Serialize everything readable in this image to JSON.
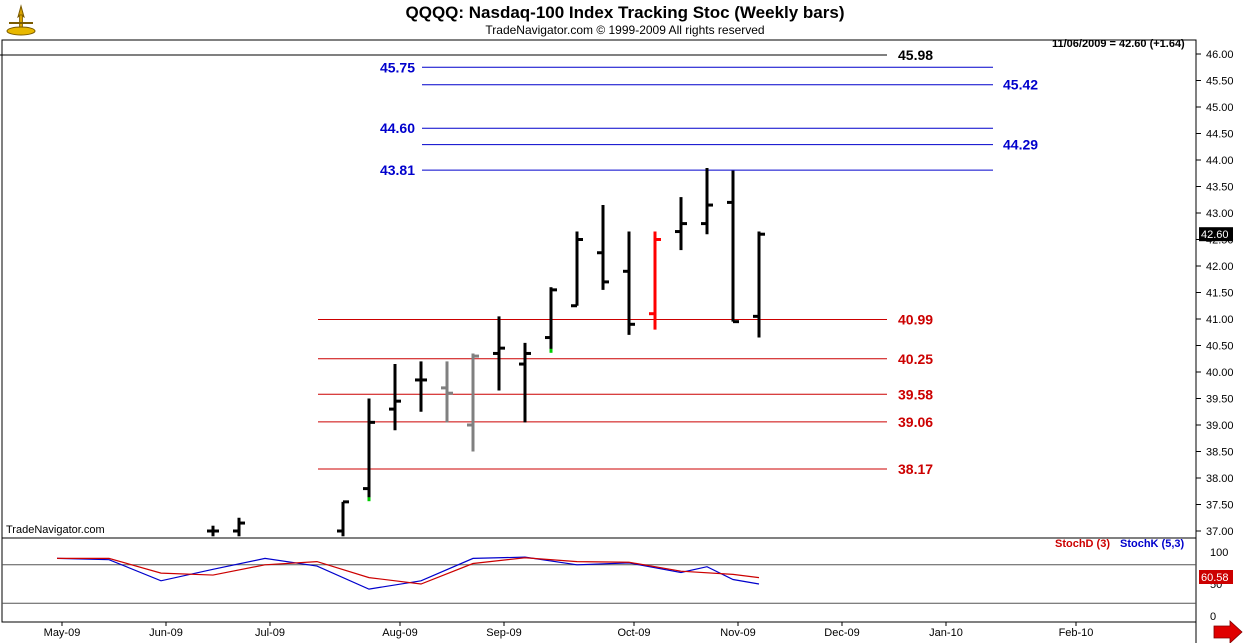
{
  "header": {
    "title": "QQQQ:  Nasdaq-100 Index Tracking Stoc  (Weekly bars)",
    "copyright": "TradeNavigator.com © 1999-2009 All rights reserved",
    "date_info": "11/06/2009 = 42.60 (+1.64)",
    "watermark": "TradeNavigator.com",
    "logo_icon": "trade-navigator-logo-icon"
  },
  "colors": {
    "bar": "#000000",
    "bar_gray": "#808080",
    "bar_red": "#ff0000",
    "fib_blue": "#0000cc",
    "fib_red": "#cc0000",
    "stochK": "#0000cc",
    "stochD": "#cc0000",
    "low_dot": "#00cc00"
  },
  "chart_data": [
    {
      "type": "ohlc",
      "frequency": "weekly",
      "ylim": [
        36.9,
        46.15
      ],
      "y_ticks": [
        "46.00",
        "45.50",
        "45.00",
        "44.50",
        "44.00",
        "43.50",
        "43.00",
        "42.50",
        "42.00",
        "41.50",
        "41.00",
        "40.50",
        "40.00",
        "39.50",
        "39.00",
        "38.50",
        "38.00",
        "37.50",
        "37.00"
      ],
      "x_ticks": [
        "May-09",
        "Jun-09",
        "Jul-09",
        "Aug-09",
        "Sep-09",
        "Oct-09",
        "Nov-09",
        "Dec-09",
        "Jan-10",
        "Feb-10"
      ],
      "x_tick_index": [
        0,
        4,
        8,
        13,
        17,
        22,
        26,
        30,
        34,
        39
      ],
      "last_price_label": "42.60",
      "bars": [
        {
          "i": 6,
          "o": 37.0,
          "h": 37.1,
          "l": 36.9,
          "c": 37.0,
          "color": "black"
        },
        {
          "i": 7,
          "o": 37.0,
          "h": 37.25,
          "l": 36.9,
          "c": 37.15,
          "color": "black"
        },
        {
          "i": 11,
          "o": 37.0,
          "h": 37.55,
          "l": 36.9,
          "c": 37.55,
          "color": "black"
        },
        {
          "i": 12,
          "o": 37.8,
          "h": 39.5,
          "l": 37.6,
          "c": 39.05,
          "color": "black",
          "low_dot": true
        },
        {
          "i": 13,
          "o": 39.3,
          "h": 40.15,
          "l": 38.9,
          "c": 39.45,
          "color": "black"
        },
        {
          "i": 14,
          "o": 39.85,
          "h": 40.2,
          "l": 39.25,
          "c": 39.85,
          "color": "black"
        },
        {
          "i": 15,
          "o": 39.7,
          "h": 40.2,
          "l": 39.05,
          "c": 39.6,
          "color": "gray"
        },
        {
          "i": 16,
          "o": 39.0,
          "h": 40.35,
          "l": 38.5,
          "c": 40.3,
          "color": "gray"
        },
        {
          "i": 17,
          "o": 40.35,
          "h": 41.05,
          "l": 39.65,
          "c": 40.45,
          "color": "black"
        },
        {
          "i": 18,
          "o": 40.15,
          "h": 40.55,
          "l": 39.05,
          "c": 40.35,
          "color": "black"
        },
        {
          "i": 19,
          "o": 40.65,
          "h": 41.6,
          "l": 40.4,
          "c": 41.55,
          "color": "black",
          "low_dot": true
        },
        {
          "i": 20,
          "o": 41.25,
          "h": 42.65,
          "l": 41.25,
          "c": 42.5,
          "color": "black"
        },
        {
          "i": 21,
          "o": 42.25,
          "h": 43.15,
          "l": 41.55,
          "c": 41.7,
          "color": "black"
        },
        {
          "i": 22,
          "o": 41.9,
          "h": 42.65,
          "l": 40.7,
          "c": 40.9,
          "color": "black"
        },
        {
          "i": 23,
          "o": 41.1,
          "h": 42.65,
          "l": 40.8,
          "c": 42.5,
          "color": "red"
        },
        {
          "i": 24,
          "o": 42.65,
          "h": 43.3,
          "l": 42.3,
          "c": 42.8,
          "color": "black"
        },
        {
          "i": 25,
          "o": 42.8,
          "h": 43.85,
          "l": 42.6,
          "c": 43.15,
          "color": "black"
        },
        {
          "i": 26,
          "o": 43.2,
          "h": 43.8,
          "l": 40.95,
          "c": 40.95,
          "color": "black"
        },
        {
          "i": 27,
          "o": 41.05,
          "h": 42.65,
          "l": 40.65,
          "c": 42.6,
          "color": "black"
        }
      ],
      "fib_levels": [
        {
          "value": 45.98,
          "label": "45.98",
          "color": "black",
          "side": "right"
        },
        {
          "value": 45.75,
          "label": "45.75",
          "color": "blue",
          "side": "left"
        },
        {
          "value": 45.42,
          "label": "45.42",
          "color": "blue",
          "side": "right"
        },
        {
          "value": 44.6,
          "label": "44.60",
          "color": "blue",
          "side": "left"
        },
        {
          "value": 44.29,
          "label": "44.29",
          "color": "blue",
          "side": "right"
        },
        {
          "value": 43.81,
          "label": "43.81",
          "color": "blue",
          "side": "left"
        },
        {
          "value": 40.99,
          "label": "40.99",
          "color": "red",
          "side": "right"
        },
        {
          "value": 40.25,
          "label": "40.25",
          "color": "red",
          "side": "right"
        },
        {
          "value": 39.58,
          "label": "39.58",
          "color": "red",
          "side": "right"
        },
        {
          "value": 39.06,
          "label": "39.06",
          "color": "red",
          "side": "right"
        },
        {
          "value": 38.17,
          "label": "38.17",
          "color": "red",
          "side": "right"
        }
      ]
    },
    {
      "type": "line",
      "ylim": [
        0,
        100
      ],
      "y_ticks": [
        "100",
        "50",
        "0"
      ],
      "legend": [
        "StochD (3)",
        "StochK (5,3)"
      ],
      "last_value_label": "60.58",
      "series": [
        {
          "name": "StochK (5,3)",
          "color": "blue",
          "x": [
            0,
            2,
            4,
            6,
            8,
            10,
            12,
            14,
            16,
            18,
            20,
            22,
            24,
            25,
            26,
            27
          ],
          "values": [
            90,
            88,
            55,
            73,
            90,
            78,
            42,
            55,
            90,
            92,
            80,
            83,
            68,
            77,
            57,
            50
          ]
        },
        {
          "name": "StochD (3)",
          "color": "red",
          "x": [
            0,
            2,
            4,
            6,
            8,
            10,
            12,
            14,
            16,
            18,
            20,
            22,
            24,
            26,
            27
          ],
          "values": [
            90,
            90,
            67,
            64,
            80,
            85,
            60,
            50,
            82,
            91,
            85,
            84,
            70,
            65,
            60
          ]
        }
      ]
    }
  ]
}
